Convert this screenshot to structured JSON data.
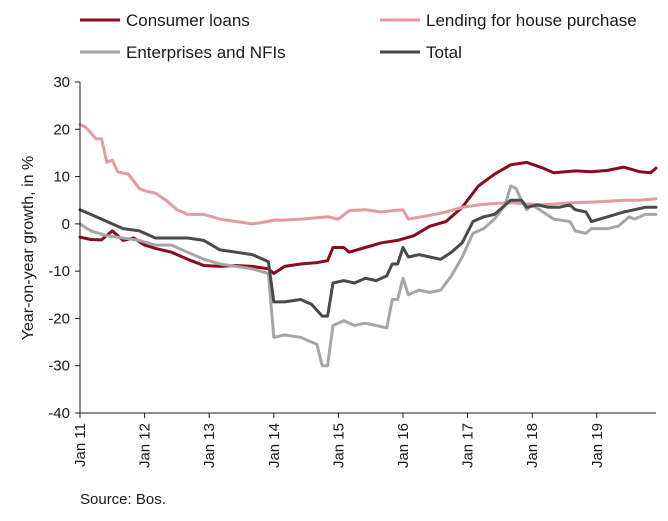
{
  "chart_data": {
    "type": "line",
    "title": "",
    "xlabel": "",
    "ylabel": "Year-on-year growth, in %",
    "ylim": [
      -40,
      30
    ],
    "y_ticks": [
      -40,
      -30,
      -20,
      -10,
      0,
      10,
      20,
      30
    ],
    "x_tick_labels": [
      "Jan 11",
      "Jan 12",
      "Jan 13",
      "Jan 14",
      "Jan 15",
      "Jan 16",
      "Jan 17",
      "Jan 18",
      "Jan 19"
    ],
    "x_start": "2011-01",
    "x_end": "2019-12",
    "grid": false,
    "legend_position": "top",
    "series": [
      {
        "name": "Consumer loans",
        "color": "#8b0a1e",
        "points": [
          [
            "2011-01",
            -2.8
          ],
          [
            "2011-03",
            -3.3
          ],
          [
            "2011-05",
            -3.4
          ],
          [
            "2011-07",
            -1.5
          ],
          [
            "2011-09",
            -3.5
          ],
          [
            "2011-11",
            -3.0
          ],
          [
            "2012-01",
            -4.5
          ],
          [
            "2012-03",
            -5.2
          ],
          [
            "2012-06",
            -6.0
          ],
          [
            "2012-09",
            -7.5
          ],
          [
            "2012-12",
            -8.8
          ],
          [
            "2013-03",
            -9.0
          ],
          [
            "2013-06",
            -8.8
          ],
          [
            "2013-09",
            -9.0
          ],
          [
            "2013-12",
            -9.5
          ],
          [
            "2014-01",
            -10.5
          ],
          [
            "2014-03",
            -9.0
          ],
          [
            "2014-06",
            -8.5
          ],
          [
            "2014-09",
            -8.2
          ],
          [
            "2014-11",
            -7.8
          ],
          [
            "2014-12",
            -5.0
          ],
          [
            "2015-02",
            -5.0
          ],
          [
            "2015-03",
            -6.0
          ],
          [
            "2015-06",
            -5.0
          ],
          [
            "2015-09",
            -4.0
          ],
          [
            "2015-12",
            -3.5
          ],
          [
            "2016-03",
            -2.5
          ],
          [
            "2016-06",
            -0.5
          ],
          [
            "2016-09",
            0.5
          ],
          [
            "2016-12",
            3.5
          ],
          [
            "2017-03",
            8.0
          ],
          [
            "2017-06",
            10.5
          ],
          [
            "2017-09",
            12.5
          ],
          [
            "2017-12",
            13.0
          ],
          [
            "2018-03",
            11.8
          ],
          [
            "2018-05",
            10.8
          ],
          [
            "2018-09",
            11.2
          ],
          [
            "2018-12",
            11.0
          ],
          [
            "2019-03",
            11.3
          ],
          [
            "2019-06",
            12.0
          ],
          [
            "2019-09",
            11.0
          ],
          [
            "2019-11",
            10.8
          ],
          [
            "2019-12",
            11.8
          ]
        ]
      },
      {
        "name": "Lending for house purchase",
        "color": "#e39aa0",
        "points": [
          [
            "2011-01",
            21.0
          ],
          [
            "2011-02",
            20.5
          ],
          [
            "2011-04",
            18.0
          ],
          [
            "2011-05",
            18.0
          ],
          [
            "2011-06",
            13.0
          ],
          [
            "2011-07",
            13.5
          ],
          [
            "2011-08",
            11.0
          ],
          [
            "2011-10",
            10.5
          ],
          [
            "2011-12",
            7.5
          ],
          [
            "2012-01",
            7.0
          ],
          [
            "2012-03",
            6.5
          ],
          [
            "2012-05",
            5.0
          ],
          [
            "2012-07",
            3.0
          ],
          [
            "2012-09",
            2.0
          ],
          [
            "2012-12",
            2.0
          ],
          [
            "2013-03",
            1.0
          ],
          [
            "2013-06",
            0.5
          ],
          [
            "2013-09",
            0.0
          ],
          [
            "2013-11",
            0.3
          ],
          [
            "2014-01",
            0.8
          ],
          [
            "2014-03",
            0.8
          ],
          [
            "2014-06",
            1.0
          ],
          [
            "2014-09",
            1.3
          ],
          [
            "2014-11",
            1.5
          ],
          [
            "2015-01",
            1.0
          ],
          [
            "2015-03",
            2.8
          ],
          [
            "2015-06",
            3.0
          ],
          [
            "2015-09",
            2.5
          ],
          [
            "2015-11",
            2.8
          ],
          [
            "2016-01",
            3.0
          ],
          [
            "2016-02",
            1.0
          ],
          [
            "2016-06",
            1.8
          ],
          [
            "2016-09",
            2.5
          ],
          [
            "2016-12",
            3.5
          ],
          [
            "2017-03",
            4.0
          ],
          [
            "2017-06",
            4.3
          ],
          [
            "2017-09",
            4.5
          ],
          [
            "2017-12",
            4.2
          ],
          [
            "2018-03",
            4.0
          ],
          [
            "2018-06",
            4.3
          ],
          [
            "2018-09",
            4.5
          ],
          [
            "2018-12",
            4.6
          ],
          [
            "2019-03",
            4.8
          ],
          [
            "2019-06",
            5.0
          ],
          [
            "2019-09",
            5.0
          ],
          [
            "2019-12",
            5.3
          ]
        ]
      },
      {
        "name": "Enterprises and NFIs",
        "color": "#a6a6a6",
        "points": [
          [
            "2011-01",
            0.0
          ],
          [
            "2011-03",
            -1.5
          ],
          [
            "2011-06",
            -2.5
          ],
          [
            "2011-09",
            -3.0
          ],
          [
            "2011-12",
            -3.5
          ],
          [
            "2012-03",
            -4.5
          ],
          [
            "2012-06",
            -4.5
          ],
          [
            "2012-09",
            -6.0
          ],
          [
            "2012-12",
            -7.5
          ],
          [
            "2013-03",
            -8.5
          ],
          [
            "2013-06",
            -9.0
          ],
          [
            "2013-09",
            -9.5
          ],
          [
            "2013-12",
            -10.5
          ],
          [
            "2014-01",
            -24.0
          ],
          [
            "2014-03",
            -23.5
          ],
          [
            "2014-06",
            -24.0
          ],
          [
            "2014-07",
            -24.5
          ],
          [
            "2014-09",
            -25.5
          ],
          [
            "2014-10",
            -30.0
          ],
          [
            "2014-11",
            -30.0
          ],
          [
            "2014-12",
            -21.5
          ],
          [
            "2015-02",
            -20.5
          ],
          [
            "2015-04",
            -21.5
          ],
          [
            "2015-06",
            -21.0
          ],
          [
            "2015-08",
            -21.5
          ],
          [
            "2015-10",
            -22.0
          ],
          [
            "2015-11",
            -16.0
          ],
          [
            "2015-12",
            -16.0
          ],
          [
            "2016-01",
            -11.5
          ],
          [
            "2016-02",
            -15.0
          ],
          [
            "2016-04",
            -14.0
          ],
          [
            "2016-06",
            -14.5
          ],
          [
            "2016-08",
            -14.0
          ],
          [
            "2016-10",
            -11.0
          ],
          [
            "2016-12",
            -7.0
          ],
          [
            "2017-02",
            -2.0
          ],
          [
            "2017-04",
            -1.0
          ],
          [
            "2017-06",
            1.0
          ],
          [
            "2017-08",
            4.0
          ],
          [
            "2017-09",
            8.0
          ],
          [
            "2017-10",
            7.5
          ],
          [
            "2017-11",
            5.0
          ],
          [
            "2017-12",
            3.0
          ],
          [
            "2018-01",
            4.0
          ],
          [
            "2018-03",
            2.5
          ],
          [
            "2018-05",
            1.0
          ],
          [
            "2018-08",
            0.5
          ],
          [
            "2018-09",
            -1.5
          ],
          [
            "2018-11",
            -2.0
          ],
          [
            "2018-12",
            -1.0
          ],
          [
            "2019-03",
            -1.0
          ],
          [
            "2019-05",
            -0.5
          ],
          [
            "2019-07",
            1.5
          ],
          [
            "2019-08",
            1.0
          ],
          [
            "2019-10",
            2.0
          ],
          [
            "2019-12",
            2.0
          ]
        ]
      },
      {
        "name": "Total",
        "color": "#4a4a4a",
        "points": [
          [
            "2011-01",
            3.0
          ],
          [
            "2011-03",
            2.0
          ],
          [
            "2011-06",
            0.5
          ],
          [
            "2011-09",
            -1.0
          ],
          [
            "2011-12",
            -1.5
          ],
          [
            "2012-03",
            -3.0
          ],
          [
            "2012-06",
            -3.0
          ],
          [
            "2012-09",
            -3.0
          ],
          [
            "2012-12",
            -3.5
          ],
          [
            "2013-03",
            -5.5
          ],
          [
            "2013-06",
            -6.0
          ],
          [
            "2013-09",
            -6.5
          ],
          [
            "2013-11",
            -7.5
          ],
          [
            "2013-12",
            -8.0
          ],
          [
            "2014-01",
            -16.5
          ],
          [
            "2014-03",
            -16.5
          ],
          [
            "2014-06",
            -16.0
          ],
          [
            "2014-08",
            -17.0
          ],
          [
            "2014-10",
            -19.5
          ],
          [
            "2014-11",
            -19.5
          ],
          [
            "2014-12",
            -12.5
          ],
          [
            "2015-02",
            -12.0
          ],
          [
            "2015-04",
            -12.5
          ],
          [
            "2015-06",
            -11.5
          ],
          [
            "2015-08",
            -12.0
          ],
          [
            "2015-10",
            -11.0
          ],
          [
            "2015-11",
            -8.5
          ],
          [
            "2015-12",
            -8.5
          ],
          [
            "2016-01",
            -5.0
          ],
          [
            "2016-02",
            -7.0
          ],
          [
            "2016-04",
            -6.5
          ],
          [
            "2016-06",
            -7.0
          ],
          [
            "2016-08",
            -7.5
          ],
          [
            "2016-10",
            -6.0
          ],
          [
            "2016-12",
            -4.0
          ],
          [
            "2017-02",
            0.5
          ],
          [
            "2017-04",
            1.5
          ],
          [
            "2017-06",
            2.0
          ],
          [
            "2017-08",
            4.0
          ],
          [
            "2017-09",
            5.0
          ],
          [
            "2017-11",
            5.0
          ],
          [
            "2017-12",
            3.5
          ],
          [
            "2018-02",
            4.0
          ],
          [
            "2018-04",
            3.5
          ],
          [
            "2018-06",
            3.5
          ],
          [
            "2018-08",
            4.0
          ],
          [
            "2018-09",
            3.0
          ],
          [
            "2018-11",
            2.5
          ],
          [
            "2018-12",
            0.5
          ],
          [
            "2019-03",
            1.5
          ],
          [
            "2019-06",
            2.5
          ],
          [
            "2019-08",
            3.0
          ],
          [
            "2019-10",
            3.5
          ],
          [
            "2019-12",
            3.5
          ]
        ]
      }
    ]
  },
  "source": "Source: Bos."
}
